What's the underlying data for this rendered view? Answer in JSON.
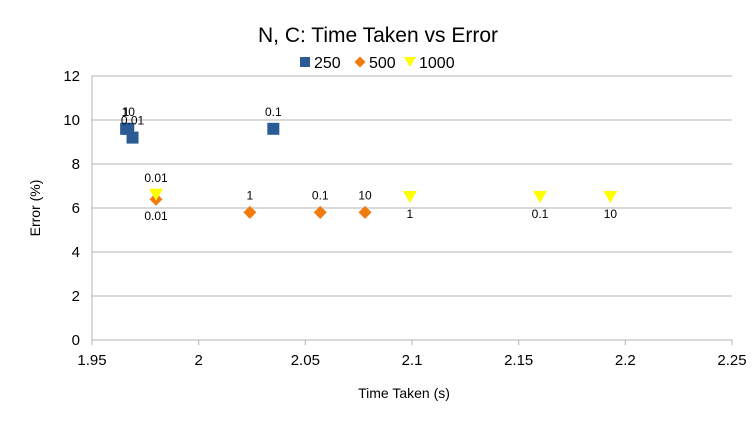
{
  "chart_data": {
    "type": "scatter",
    "title": "N, C: Time Taken vs Error",
    "xlabel": "Time Taken (s)",
    "ylabel": "Error (%)",
    "xlim": [
      1.95,
      2.25
    ],
    "ylim": [
      0,
      12
    ],
    "xticks": [
      1.95,
      2,
      2.05,
      2.1,
      2.15,
      2.2,
      2.25
    ],
    "yticks": [
      0,
      2,
      4,
      6,
      8,
      10,
      12
    ],
    "grid": true,
    "legend": "top",
    "series": [
      {
        "name": "250",
        "marker": "square",
        "color": "#2a5b95",
        "points": [
          {
            "x": 1.966,
            "y": 9.6,
            "label": "1",
            "label_pos": "above"
          },
          {
            "x": 1.967,
            "y": 9.6,
            "label": "10",
            "label_pos": "above"
          },
          {
            "x": 1.969,
            "y": 9.2,
            "label": "0.01",
            "label_pos": "above"
          },
          {
            "x": 2.035,
            "y": 9.6,
            "label": "0.1",
            "label_pos": "above"
          }
        ]
      },
      {
        "name": "500",
        "marker": "diamond",
        "color": "#f07b0e",
        "points": [
          {
            "x": 1.98,
            "y": 6.4,
            "label": "0.01",
            "label_pos": "below"
          },
          {
            "x": 2.024,
            "y": 5.8,
            "label": "1",
            "label_pos": "above"
          },
          {
            "x": 2.057,
            "y": 5.8,
            "label": "0.1",
            "label_pos": "above"
          },
          {
            "x": 2.078,
            "y": 5.8,
            "label": "10",
            "label_pos": "above"
          }
        ]
      },
      {
        "name": "1000",
        "marker": "triangle-down",
        "color": "#ffff00",
        "points": [
          {
            "x": 1.98,
            "y": 6.6,
            "label": "0.01",
            "label_pos": "above"
          },
          {
            "x": 2.099,
            "y": 6.5,
            "label": "1",
            "label_pos": "below"
          },
          {
            "x": 2.16,
            "y": 6.5,
            "label": "0.1",
            "label_pos": "below"
          },
          {
            "x": 2.193,
            "y": 6.5,
            "label": "10",
            "label_pos": "below"
          }
        ]
      }
    ]
  }
}
